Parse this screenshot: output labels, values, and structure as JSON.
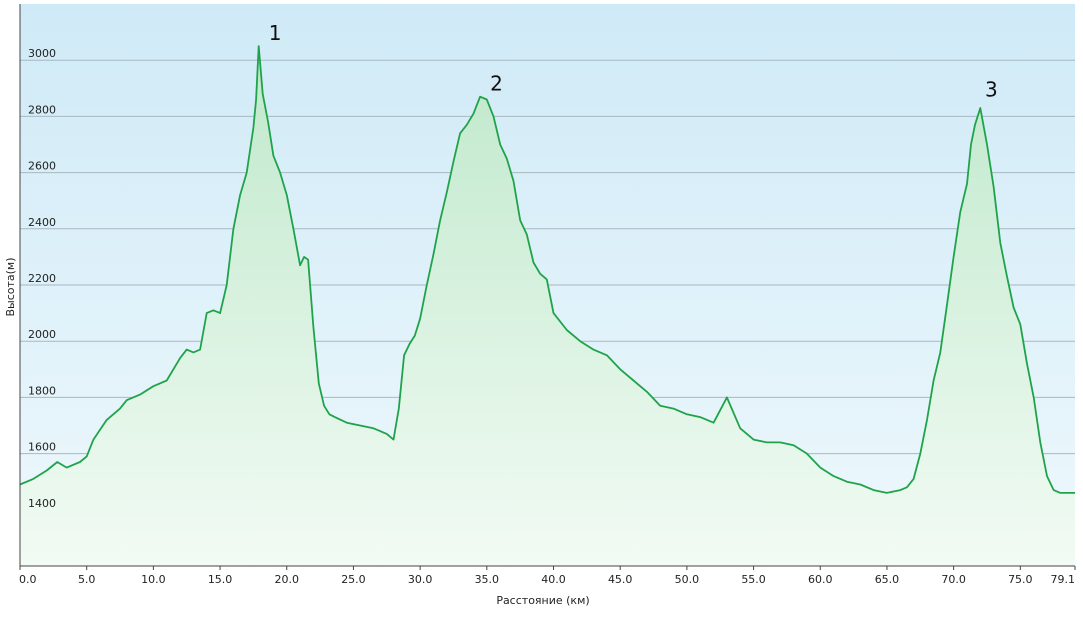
{
  "chart_data": {
    "type": "area",
    "title": "",
    "xlabel": "Расстояние  (км)",
    "ylabel": "Высота(м)",
    "xlim": [
      0,
      79.1
    ],
    "ylim": [
      1200,
      3200
    ],
    "x_ticks": [
      "0.0",
      "5.0",
      "10.0",
      "15.0",
      "20.0",
      "25.0",
      "30.0",
      "35.0",
      "40.0",
      "45.0",
      "50.0",
      "55.0",
      "60.0",
      "65.0",
      "70.0",
      "75.0",
      "79.1"
    ],
    "y_ticks": [
      "1400",
      "1600",
      "1800",
      "2000",
      "2200",
      "2400",
      "2600",
      "2800",
      "3000"
    ],
    "grid": true,
    "colors": {
      "line": "#1fa34a",
      "sky": "#d2ecf7",
      "fill_top": "#c6ead0",
      "fill_bottom": "#eefaf1",
      "grid": "#a8b8c0"
    },
    "series": [
      {
        "x": [
          0.0,
          1.0,
          2.0,
          2.8,
          3.5,
          4.5,
          5.0,
          5.5,
          6.5,
          7.5,
          8.0,
          9.0,
          10.0,
          11.0,
          12.0,
          12.5,
          13.0,
          13.5,
          14.0,
          14.5,
          15.0,
          15.5,
          16.0,
          16.5,
          17.0,
          17.5,
          17.7,
          17.9,
          18.2,
          18.6,
          19.0,
          19.5,
          20.0,
          20.5,
          21.0,
          21.3,
          21.6,
          22.0,
          22.4,
          22.8,
          23.2,
          23.6,
          24.5,
          25.5,
          26.5,
          27.0,
          27.5,
          28.0,
          28.4,
          28.8,
          29.2,
          29.6,
          30.0,
          30.5,
          31.0,
          31.5,
          32.0,
          32.5,
          33.0,
          33.5,
          34.0,
          34.5,
          35.0,
          35.5,
          36.0,
          36.5,
          37.0,
          37.5,
          38.0,
          38.5,
          39.0,
          39.5,
          40.0,
          41.0,
          42.0,
          43.0,
          44.0,
          45.0,
          46.0,
          47.0,
          48.0,
          49.0,
          50.0,
          51.0,
          52.0,
          53.0,
          54.0,
          55.0,
          56.0,
          57.0,
          58.0,
          59.0,
          60.0,
          61.0,
          62.0,
          63.0,
          64.0,
          65.0,
          66.0,
          66.5,
          67.0,
          67.5,
          68.0,
          68.5,
          69.0,
          69.5,
          70.0,
          70.5,
          71.0,
          71.3,
          71.6,
          72.0,
          72.5,
          73.0,
          73.5,
          74.0,
          74.5,
          75.0,
          75.5,
          76.0,
          76.5,
          77.0,
          77.5,
          78.0,
          78.5,
          79.1
        ],
        "y": [
          1490,
          1510,
          1540,
          1570,
          1550,
          1570,
          1590,
          1650,
          1720,
          1760,
          1790,
          1810,
          1840,
          1860,
          1940,
          1970,
          1960,
          1970,
          2100,
          2110,
          2100,
          2200,
          2400,
          2520,
          2600,
          2760,
          2860,
          3050,
          2880,
          2780,
          2660,
          2600,
          2520,
          2400,
          2270,
          2300,
          2290,
          2050,
          1850,
          1770,
          1740,
          1730,
          1710,
          1700,
          1690,
          1680,
          1670,
          1650,
          1760,
          1950,
          1990,
          2020,
          2080,
          2200,
          2310,
          2430,
          2530,
          2640,
          2740,
          2770,
          2810,
          2870,
          2860,
          2800,
          2700,
          2650,
          2570,
          2430,
          2380,
          2280,
          2240,
          2220,
          2100,
          2040,
          2000,
          1970,
          1950,
          1900,
          1860,
          1820,
          1770,
          1760,
          1740,
          1730,
          1710,
          1800,
          1690,
          1650,
          1640,
          1640,
          1630,
          1600,
          1550,
          1520,
          1500,
          1490,
          1470,
          1460,
          1470,
          1480,
          1510,
          1600,
          1720,
          1860,
          1960,
          2130,
          2300,
          2460,
          2560,
          2700,
          2770,
          2830,
          2700,
          2550,
          2350,
          2230,
          2120,
          2060,
          1920,
          1800,
          1640,
          1520,
          1470,
          1460,
          1460,
          1460
        ]
      }
    ],
    "annotations": [
      {
        "label": "1",
        "x": 17.9,
        "y": 3050
      },
      {
        "label": "2",
        "x": 34.5,
        "y": 2870
      },
      {
        "label": "3",
        "x": 71.6,
        "y": 2850
      }
    ]
  }
}
